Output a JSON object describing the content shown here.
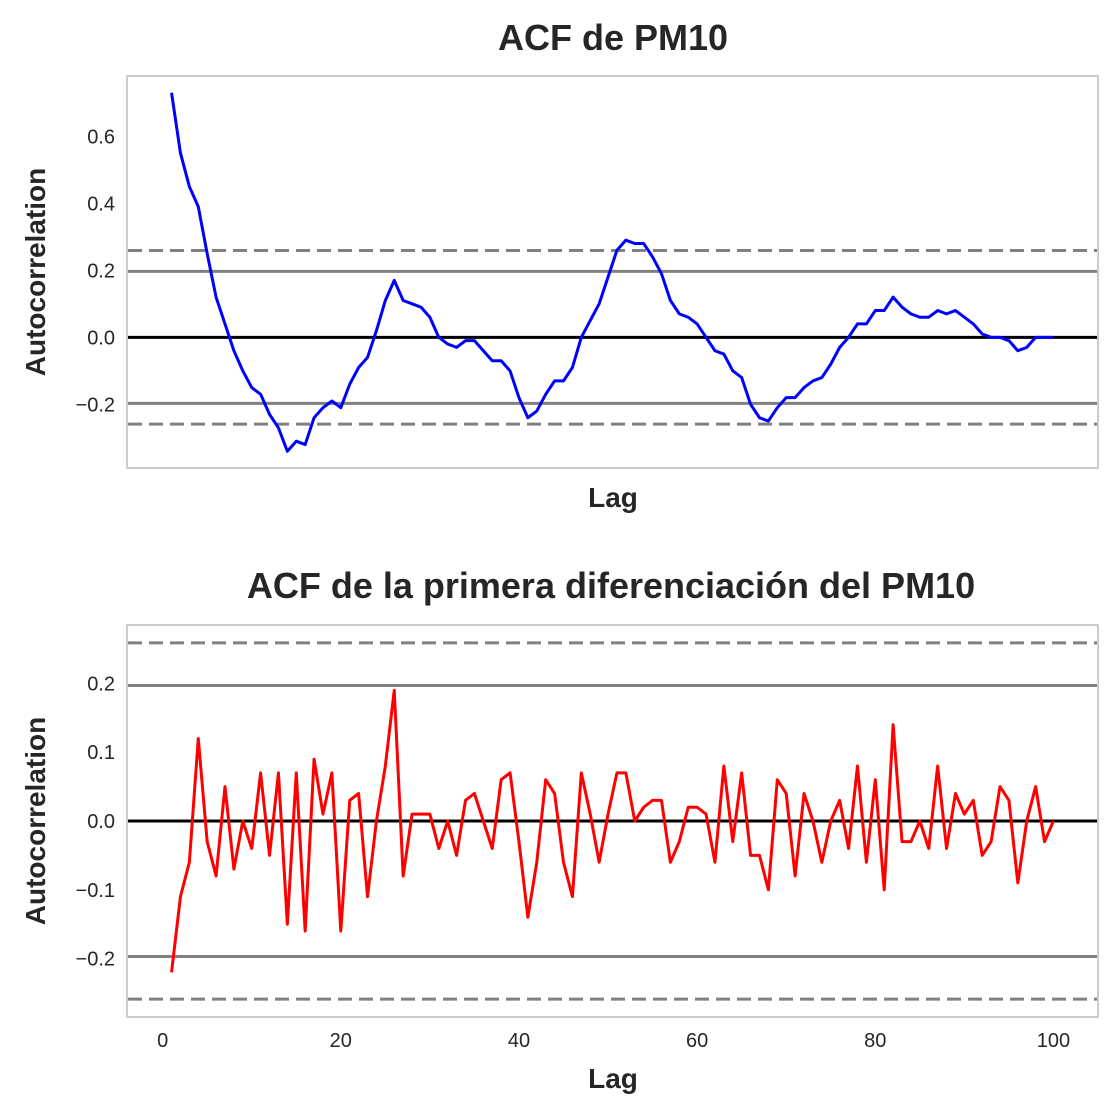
{
  "chart_data": [
    {
      "type": "line",
      "title": "ACF de PM10",
      "xlabel": "Lag",
      "ylabel": "Autocorrelation",
      "xlim": [
        -4,
        105
      ],
      "ylim": [
        -0.39,
        0.78
      ],
      "x_ticks_shown": false,
      "y_ticks": [
        -0.2,
        0.0,
        0.2,
        0.4,
        0.6
      ],
      "y_tick_labels": [
        "−0.2",
        "0.0",
        "0.2",
        "0.4",
        "0.6"
      ],
      "grid": false,
      "reference_lines": {
        "zero": 0.0,
        "solid": [
          0.197,
          -0.197
        ],
        "dashed": [
          0.259,
          -0.259
        ]
      },
      "series": [
        {
          "color": "#0000ff",
          "x": [
            1,
            2,
            3,
            4,
            5,
            6,
            7,
            8,
            9,
            10,
            11,
            12,
            13,
            14,
            15,
            16,
            17,
            18,
            19,
            20,
            21,
            22,
            23,
            24,
            25,
            26,
            27,
            28,
            29,
            30,
            31,
            32,
            33,
            34,
            35,
            36,
            37,
            38,
            39,
            40,
            41,
            42,
            43,
            44,
            45,
            46,
            47,
            48,
            49,
            50,
            51,
            52,
            53,
            54,
            55,
            56,
            57,
            58,
            59,
            60,
            61,
            62,
            63,
            64,
            65,
            66,
            67,
            68,
            69,
            70,
            71,
            72,
            73,
            74,
            75,
            76,
            77,
            78,
            79,
            80,
            81,
            82,
            83,
            84,
            85,
            86,
            87,
            88,
            89,
            90,
            91,
            92,
            93,
            94,
            95,
            96,
            97,
            98,
            99,
            100
          ],
          "values": [
            0.73,
            0.55,
            0.45,
            0.39,
            0.25,
            0.12,
            0.04,
            -0.04,
            -0.1,
            -0.15,
            -0.17,
            -0.23,
            -0.27,
            -0.34,
            -0.31,
            -0.32,
            -0.24,
            -0.21,
            -0.19,
            -0.21,
            -0.14,
            -0.09,
            -0.06,
            0.02,
            0.11,
            0.17,
            0.11,
            0.1,
            0.09,
            0.06,
            0.0,
            -0.02,
            -0.03,
            -0.01,
            -0.01,
            -0.04,
            -0.07,
            -0.07,
            -0.1,
            -0.18,
            -0.24,
            -0.22,
            -0.17,
            -0.13,
            -0.13,
            -0.09,
            0.0,
            0.05,
            0.1,
            0.18,
            0.26,
            0.29,
            0.28,
            0.28,
            0.24,
            0.19,
            0.11,
            0.07,
            0.06,
            0.04,
            0.0,
            -0.04,
            -0.05,
            -0.1,
            -0.12,
            -0.2,
            -0.24,
            -0.25,
            -0.21,
            -0.18,
            -0.18,
            -0.15,
            -0.13,
            -0.12,
            -0.08,
            -0.03,
            0.0,
            0.04,
            0.04,
            0.08,
            0.08,
            0.12,
            0.09,
            0.07,
            0.06,
            0.06,
            0.08,
            0.07,
            0.08,
            0.06,
            0.04,
            0.01,
            0.0,
            0.0,
            -0.01,
            -0.04,
            -0.03,
            0.0,
            0.0,
            0.0
          ]
        }
      ]
    },
    {
      "type": "line",
      "title": "ACF de la primera diferenciación del PM10",
      "xlabel": "Lag",
      "ylabel": "Autocorrelation",
      "xlim": [
        -4,
        105
      ],
      "ylim": [
        -0.285,
        0.285
      ],
      "x_ticks": [
        0,
        20,
        40,
        60,
        80,
        100
      ],
      "x_tick_labels": [
        "0",
        "20",
        "40",
        "60",
        "80",
        "100"
      ],
      "y_ticks": [
        -0.2,
        -0.1,
        0.0,
        0.1,
        0.2
      ],
      "y_tick_labels": [
        "−0.2",
        "−0.1",
        "0.0",
        "0.1",
        "0.2"
      ],
      "grid": false,
      "reference_lines": {
        "zero": 0.0,
        "solid": [
          0.197,
          -0.197
        ],
        "dashed": [
          0.259,
          -0.259
        ]
      },
      "series": [
        {
          "color": "#ff0000",
          "x": [
            1,
            2,
            3,
            4,
            5,
            6,
            7,
            8,
            9,
            10,
            11,
            12,
            13,
            14,
            15,
            16,
            17,
            18,
            19,
            20,
            21,
            22,
            23,
            24,
            25,
            26,
            27,
            28,
            29,
            30,
            31,
            32,
            33,
            34,
            35,
            36,
            37,
            38,
            39,
            40,
            41,
            42,
            43,
            44,
            45,
            46,
            47,
            48,
            49,
            50,
            51,
            52,
            53,
            54,
            55,
            56,
            57,
            58,
            59,
            60,
            61,
            62,
            63,
            64,
            65,
            66,
            67,
            68,
            69,
            70,
            71,
            72,
            73,
            74,
            75,
            76,
            77,
            78,
            79,
            80,
            81,
            82,
            83,
            84,
            85,
            86,
            87,
            88,
            89,
            90,
            91,
            92,
            93,
            94,
            95,
            96,
            97,
            98,
            99,
            100
          ],
          "values": [
            -0.22,
            -0.11,
            -0.06,
            0.12,
            -0.03,
            -0.08,
            0.05,
            -0.07,
            0.0,
            -0.04,
            0.07,
            -0.05,
            0.07,
            -0.15,
            0.07,
            -0.16,
            0.09,
            0.01,
            0.07,
            -0.16,
            0.03,
            0.04,
            -0.11,
            0.0,
            0.08,
            0.19,
            -0.08,
            0.01,
            0.01,
            0.01,
            -0.04,
            0.0,
            -0.05,
            0.03,
            0.04,
            0.0,
            -0.04,
            0.06,
            0.07,
            -0.03,
            -0.14,
            -0.06,
            0.06,
            0.04,
            -0.06,
            -0.11,
            0.07,
            0.01,
            -0.06,
            0.01,
            0.07,
            0.07,
            0.0,
            0.02,
            0.03,
            0.03,
            -0.06,
            -0.03,
            0.02,
            0.02,
            0.01,
            -0.06,
            0.08,
            -0.03,
            0.07,
            -0.05,
            -0.05,
            -0.1,
            0.06,
            0.04,
            -0.08,
            0.04,
            0.0,
            -0.06,
            0.0,
            0.03,
            -0.04,
            0.08,
            -0.06,
            0.06,
            -0.1,
            0.14,
            -0.03,
            -0.03,
            0.0,
            -0.04,
            0.08,
            -0.04,
            0.04,
            0.01,
            0.03,
            -0.05,
            -0.03,
            0.05,
            0.03,
            -0.09,
            0.0,
            0.05,
            -0.03,
            0.0
          ]
        }
      ]
    }
  ]
}
